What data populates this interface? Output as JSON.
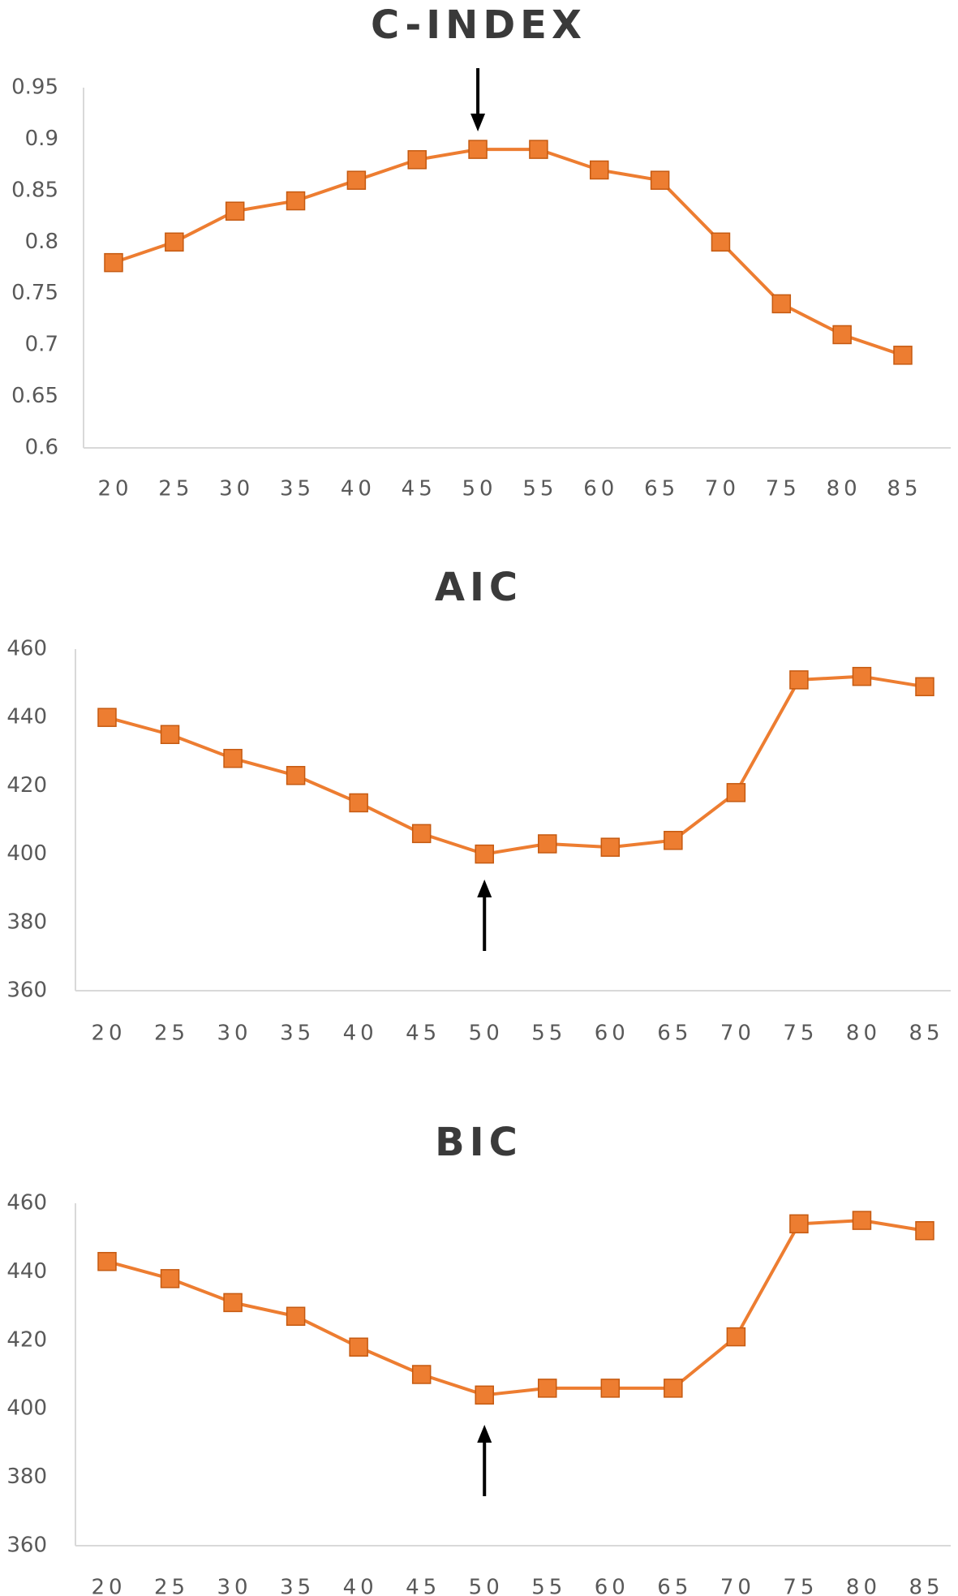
{
  "chart_data": [
    {
      "type": "line",
      "title": "C-INDEX",
      "categories": [
        "20",
        "25",
        "30",
        "35",
        "40",
        "45",
        "50",
        "55",
        "60",
        "65",
        "70",
        "75",
        "80",
        "85"
      ],
      "series": [
        {
          "values": [
            0.78,
            0.8,
            0.83,
            0.84,
            0.86,
            0.88,
            0.89,
            0.89,
            0.87,
            0.86,
            0.8,
            0.74,
            0.71,
            0.69
          ]
        }
      ],
      "ylim": [
        0.6,
        0.95
      ],
      "yticks": [
        "0.6",
        "0.65",
        "0.7",
        "0.75",
        "0.8",
        "0.85",
        "0.9",
        "0.95"
      ],
      "annotation": {
        "type": "arrow",
        "direction": "down",
        "x": "50"
      },
      "color": "#ed7d31",
      "marker": "square",
      "grid": false
    },
    {
      "type": "line",
      "title": "AIC",
      "categories": [
        "20",
        "25",
        "30",
        "35",
        "40",
        "45",
        "50",
        "55",
        "60",
        "65",
        "70",
        "75",
        "80",
        "85"
      ],
      "series": [
        {
          "values": [
            440,
            435,
            428,
            423,
            415,
            406,
            400,
            403,
            402,
            404,
            418,
            451,
            452,
            449
          ]
        }
      ],
      "ylim": [
        360,
        460
      ],
      "yticks": [
        "360",
        "380",
        "400",
        "420",
        "440",
        "460"
      ],
      "annotation": {
        "type": "arrow",
        "direction": "up",
        "x": "50"
      },
      "color": "#ed7d31",
      "marker": "square",
      "grid": false
    },
    {
      "type": "line",
      "title": "BIC",
      "categories": [
        "20",
        "25",
        "30",
        "35",
        "40",
        "45",
        "50",
        "55",
        "60",
        "65",
        "70",
        "75",
        "80",
        "85"
      ],
      "series": [
        {
          "values": [
            443,
            438,
            431,
            427,
            418,
            410,
            404,
            406,
            406,
            406,
            421,
            454,
            455,
            452
          ]
        }
      ],
      "ylim": [
        360,
        460
      ],
      "yticks": [
        "360",
        "380",
        "400",
        "420",
        "440",
        "460"
      ],
      "annotation": {
        "type": "arrow",
        "direction": "up",
        "x": "50"
      },
      "color": "#ed7d31",
      "marker": "square",
      "grid": false
    }
  ]
}
